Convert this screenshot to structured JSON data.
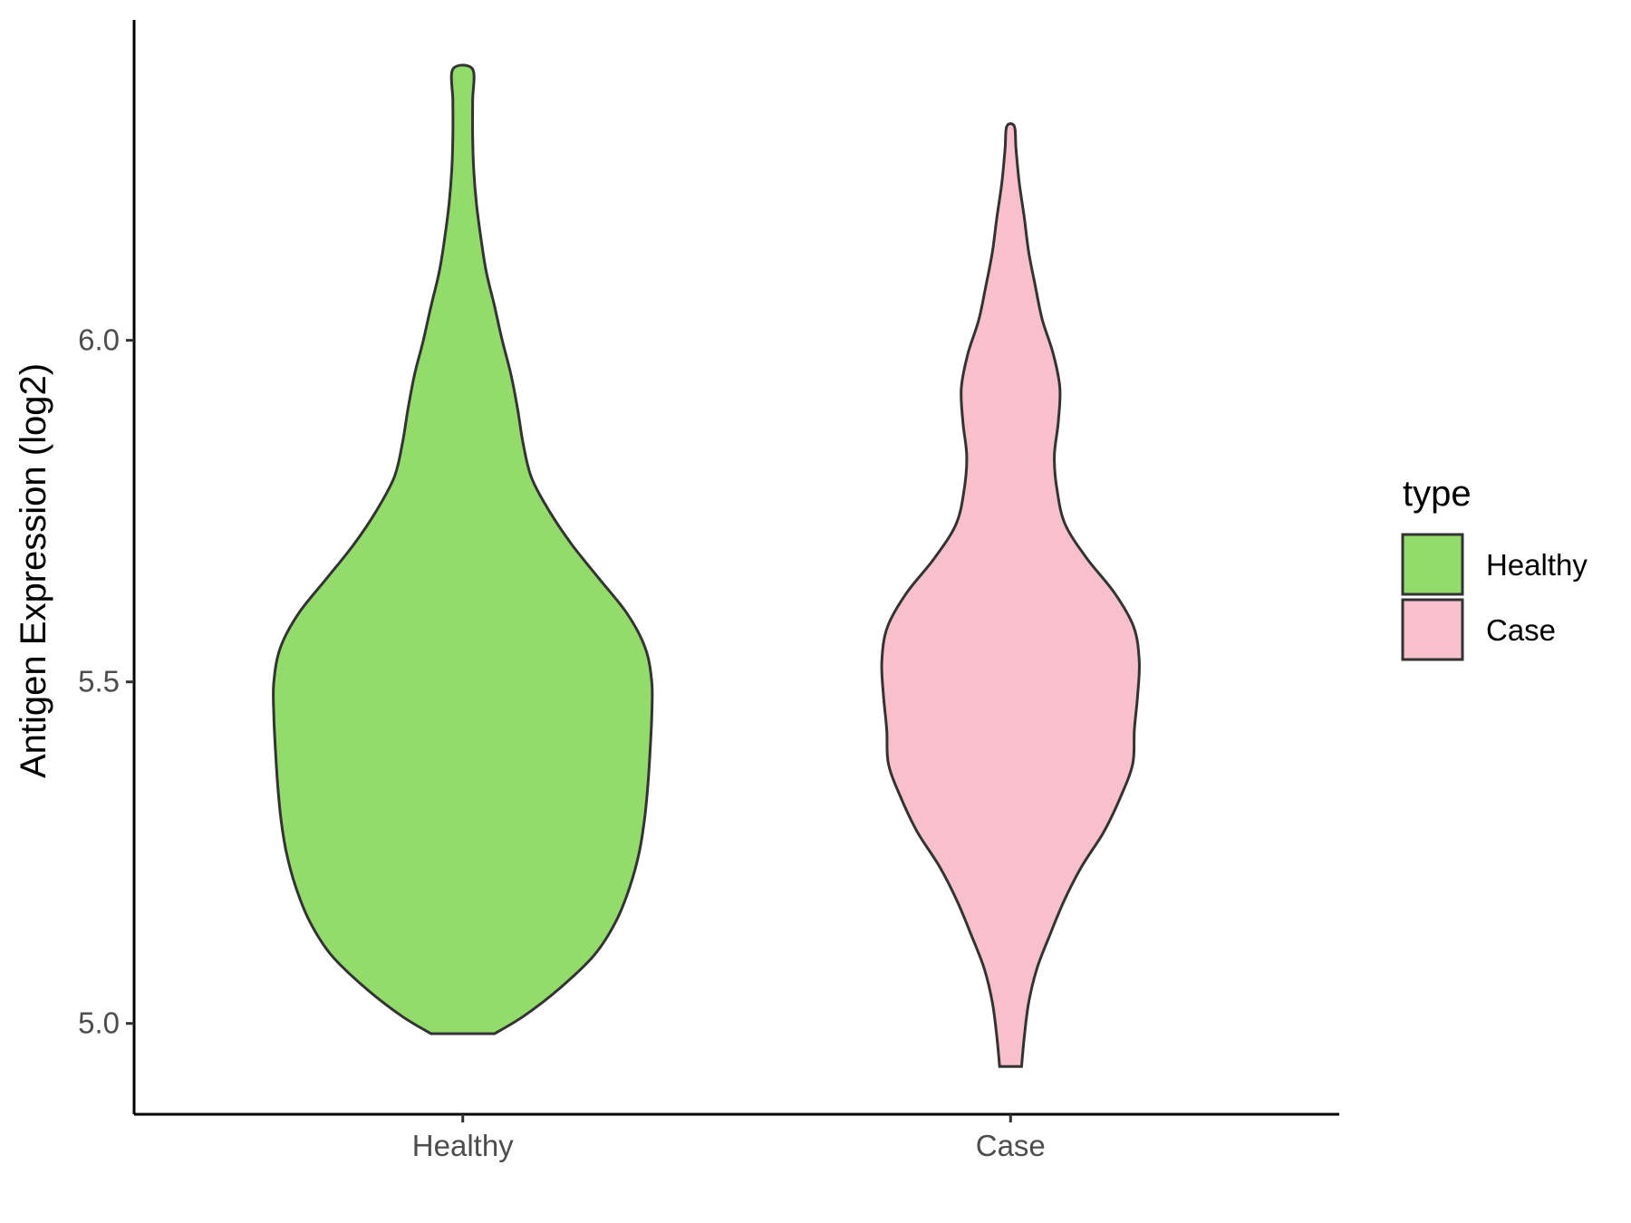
{
  "chart_data": {
    "type": "violin",
    "xlabel": "",
    "ylabel": "Antigen Expression (log2)",
    "categories": [
      "Healthy",
      "Case"
    ],
    "y_ticks": [
      5.0,
      5.5,
      6.0
    ],
    "y_tick_labels": [
      "5.0",
      "5.5",
      "6.0"
    ],
    "ylim": [
      4.867,
      6.469
    ],
    "legend": {
      "title": "type",
      "position": "right",
      "entries": [
        {
          "label": "Healthy",
          "color": "#93DC6B"
        },
        {
          "label": "Case",
          "color": "#F7C0CB"
        }
      ]
    },
    "series": [
      {
        "category": "Healthy",
        "color": "#93DC6B",
        "min": 4.985,
        "max": 6.397,
        "density": [
          [
            4.985,
            0.058
          ],
          [
            5.01,
            0.11
          ],
          [
            5.05,
            0.175
          ],
          [
            5.1,
            0.24
          ],
          [
            5.15,
            0.28
          ],
          [
            5.2,
            0.305
          ],
          [
            5.25,
            0.322
          ],
          [
            5.3,
            0.332
          ],
          [
            5.35,
            0.338
          ],
          [
            5.4,
            0.342
          ],
          [
            5.45,
            0.345
          ],
          [
            5.5,
            0.345
          ],
          [
            5.55,
            0.333
          ],
          [
            5.6,
            0.3
          ],
          [
            5.65,
            0.25
          ],
          [
            5.7,
            0.2
          ],
          [
            5.75,
            0.158
          ],
          [
            5.8,
            0.125
          ],
          [
            5.85,
            0.11
          ],
          [
            5.9,
            0.1
          ],
          [
            5.95,
            0.088
          ],
          [
            6.0,
            0.072
          ],
          [
            6.05,
            0.058
          ],
          [
            6.1,
            0.043
          ],
          [
            6.15,
            0.033
          ],
          [
            6.2,
            0.025
          ],
          [
            6.25,
            0.02
          ],
          [
            6.3,
            0.018
          ],
          [
            6.35,
            0.018
          ],
          [
            6.397,
            0.018
          ]
        ]
      },
      {
        "category": "Case",
        "color": "#F7C0CB",
        "min": 4.937,
        "max": 6.313,
        "density": [
          [
            4.937,
            0.02
          ],
          [
            4.98,
            0.025
          ],
          [
            5.03,
            0.033
          ],
          [
            5.08,
            0.048
          ],
          [
            5.13,
            0.072
          ],
          [
            5.18,
            0.098
          ],
          [
            5.23,
            0.13
          ],
          [
            5.28,
            0.17
          ],
          [
            5.33,
            0.2
          ],
          [
            5.38,
            0.223
          ],
          [
            5.43,
            0.226
          ],
          [
            5.48,
            0.232
          ],
          [
            5.53,
            0.235
          ],
          [
            5.58,
            0.225
          ],
          [
            5.63,
            0.19
          ],
          [
            5.68,
            0.14
          ],
          [
            5.73,
            0.1
          ],
          [
            5.78,
            0.085
          ],
          [
            5.83,
            0.08
          ],
          [
            5.88,
            0.087
          ],
          [
            5.93,
            0.09
          ],
          [
            5.98,
            0.078
          ],
          [
            6.03,
            0.058
          ],
          [
            6.08,
            0.045
          ],
          [
            6.13,
            0.033
          ],
          [
            6.18,
            0.025
          ],
          [
            6.23,
            0.016
          ],
          [
            6.28,
            0.01
          ],
          [
            6.313,
            0.007
          ]
        ]
      }
    ]
  }
}
